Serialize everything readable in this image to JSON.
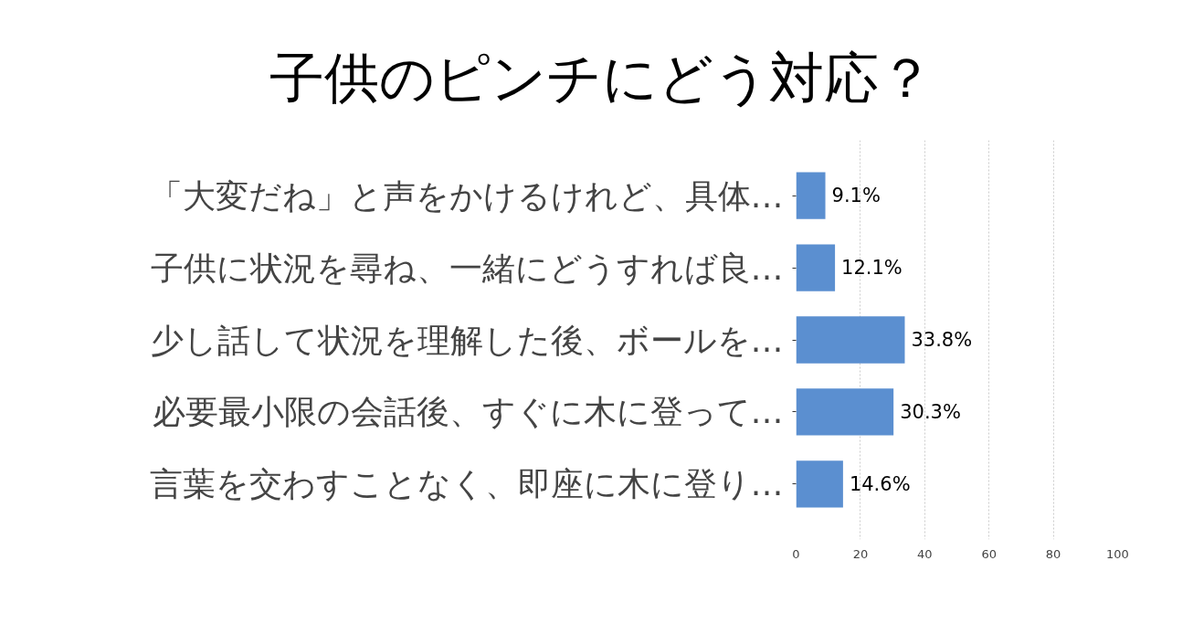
{
  "chart_data": {
    "type": "bar",
    "orientation": "horizontal",
    "title": "子供のピンチにどう対応？",
    "categories": [
      "「大変だね」と声をかけるけれど、具体…",
      "子供に状況を尋ね、一緒にどうすれば良…",
      "少し話して状況を理解した後、ボールを…",
      "必要最小限の会話後、すぐに木に登って…",
      "言葉を交わすことなく、即座に木に登り…"
    ],
    "values": [
      9.1,
      12.1,
      33.8,
      30.3,
      14.6
    ],
    "value_labels": [
      "9.1%",
      "12.1%",
      "33.8%",
      "30.3%",
      "14.6%"
    ],
    "color": "#5b8fd0",
    "xlim": [
      0,
      100
    ],
    "xticks": [
      0,
      20,
      40,
      60,
      80,
      100
    ],
    "grid": "x"
  }
}
